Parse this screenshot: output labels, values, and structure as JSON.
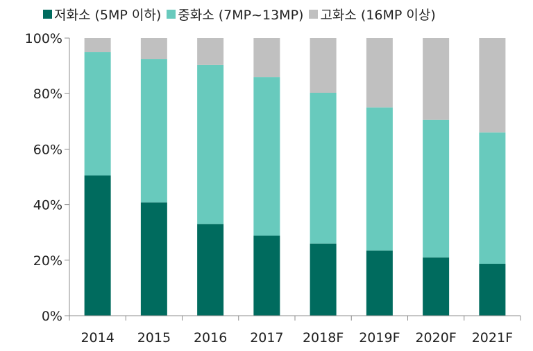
{
  "legend": [
    {
      "label": "저화소 (5MP 이하)",
      "color": "#006b5e"
    },
    {
      "label": "중화소 (7MP~13MP)",
      "color": "#68cabd"
    },
    {
      "label": "고화소 (16MP 이상)",
      "color": "#c0c0c0"
    }
  ],
  "chart_data": {
    "type": "bar",
    "stacked": true,
    "categories": [
      "2014",
      "2015",
      "2016",
      "2017",
      "2018F",
      "2019F",
      "2020F",
      "2021F"
    ],
    "series": [
      {
        "name": "저화소 (5MP 이하)",
        "color": "#006b5e",
        "values": [
          50.5,
          40.8,
          33.0,
          28.8,
          26.0,
          23.5,
          21.0,
          18.7
        ]
      },
      {
        "name": "중화소 (7MP~13MP)",
        "color": "#68cabd",
        "values": [
          44.5,
          51.7,
          57.3,
          57.2,
          54.3,
          51.5,
          49.6,
          47.3
        ]
      },
      {
        "name": "고화소 (16MP 이상)",
        "color": "#c0c0c0",
        "values": [
          5.0,
          7.5,
          9.7,
          14.0,
          19.7,
          25.0,
          29.4,
          34.0
        ]
      }
    ],
    "yticks": [
      "0%",
      "20%",
      "40%",
      "60%",
      "80%",
      "100%"
    ],
    "ylim": [
      0,
      100
    ],
    "grid": false,
    "legend_position": "top"
  }
}
